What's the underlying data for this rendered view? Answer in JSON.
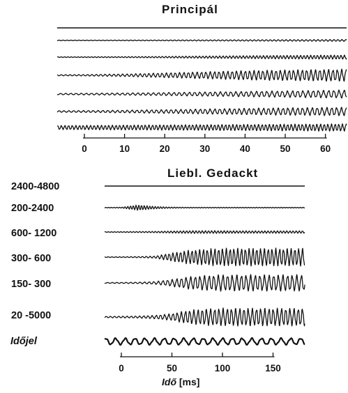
{
  "chart_data": [
    {
      "type": "line",
      "title": "Principál",
      "xticks": [
        0,
        10,
        20,
        30,
        40,
        50,
        60
      ],
      "xlim": [
        -14,
        64
      ],
      "traces": [
        {
          "band": "",
          "amplitude": [
            0.2,
            0.2,
            0.2,
            0.2,
            0.2,
            0.2,
            0.2,
            0.2,
            0.2,
            0.2,
            0.2,
            0.2,
            0.2
          ]
        },
        {
          "band": "",
          "amplitude": [
            0.5,
            0.5,
            0.5,
            0.6,
            0.6,
            0.7,
            0.8,
            0.9,
            1.0,
            1.1,
            1.2,
            1.3,
            1.4
          ]
        },
        {
          "band": "",
          "amplitude": [
            0.5,
            0.6,
            0.7,
            0.8,
            1.0,
            1.3,
            1.6,
            1.9,
            2.2,
            2.5,
            2.7,
            2.9,
            3.0
          ]
        },
        {
          "band": "",
          "amplitude": [
            0.8,
            1.0,
            1.5,
            2.0,
            3.0,
            4.0,
            5.0,
            6.0,
            7.0,
            7.5,
            8.0,
            8.5,
            9.0
          ]
        },
        {
          "band": "",
          "amplitude": [
            1.0,
            1.2,
            1.4,
            1.7,
            2.0,
            2.5,
            3.0,
            3.5,
            4.0,
            4.5,
            5.0,
            5.5,
            6.0
          ]
        },
        {
          "band": "",
          "amplitude": [
            1.2,
            1.4,
            1.7,
            2.0,
            2.5,
            3.0,
            3.6,
            4.2,
            4.8,
            5.2,
            5.6,
            6.0,
            6.2
          ]
        },
        {
          "band": "",
          "amplitude": [
            3.0,
            3.2,
            3.4,
            3.6,
            3.8,
            4.0,
            4.2,
            4.4,
            4.6,
            4.8,
            5.0,
            5.2,
            5.4
          ]
        }
      ]
    },
    {
      "type": "line",
      "title": "Liebl. Gedackt",
      "xticks": [
        0,
        50,
        100,
        150
      ],
      "xlim": [
        -18,
        178
      ],
      "xlabel": {
        "var": "Idő",
        "unit": "[ms]"
      },
      "traces": [
        {
          "band": "2400-4800",
          "amplitude": [
            0.3,
            0.3,
            0.3,
            0.3,
            0.3,
            0.3,
            0.3,
            0.3,
            0.3,
            0.3,
            0.3,
            0.3,
            0.3
          ]
        },
        {
          "band": "200-2400",
          "amplitude": [
            0.5,
            0.6,
            4.0,
            1.8,
            0.8,
            0.6,
            0.6,
            0.6,
            0.6,
            0.6,
            0.6,
            0.6,
            0.6
          ]
        },
        {
          "band": "600- 1200",
          "amplitude": [
            0.5,
            0.6,
            0.8,
            1.0,
            1.5,
            2.0,
            2.0,
            2.0,
            1.8,
            1.8,
            1.8,
            1.8,
            1.8
          ]
        },
        {
          "band": "300- 600",
          "amplitude": [
            0.5,
            0.6,
            0.8,
            1.5,
            6.0,
            10.0,
            12.0,
            13.0,
            13.0,
            13.0,
            13.0,
            13.0,
            13.0
          ]
        },
        {
          "band": "150- 300",
          "amplitude": [
            0.6,
            0.8,
            1.0,
            2.0,
            5.0,
            9.0,
            11.0,
            12.0,
            12.0,
            12.0,
            12.0,
            12.0,
            12.0
          ]
        },
        {
          "band": "20 -5000",
          "amplitude": [
            1.0,
            1.2,
            1.5,
            2.5,
            5.0,
            10.0,
            12.0,
            13.0,
            13.0,
            13.0,
            13.0,
            13.0,
            13.0
          ]
        },
        {
          "band": "Időjel",
          "amplitude": [
            5.0,
            5.0,
            5.0,
            5.0,
            5.0,
            5.0,
            5.0,
            5.0,
            5.0,
            5.0,
            5.0,
            5.0,
            5.0
          ]
        }
      ]
    }
  ]
}
